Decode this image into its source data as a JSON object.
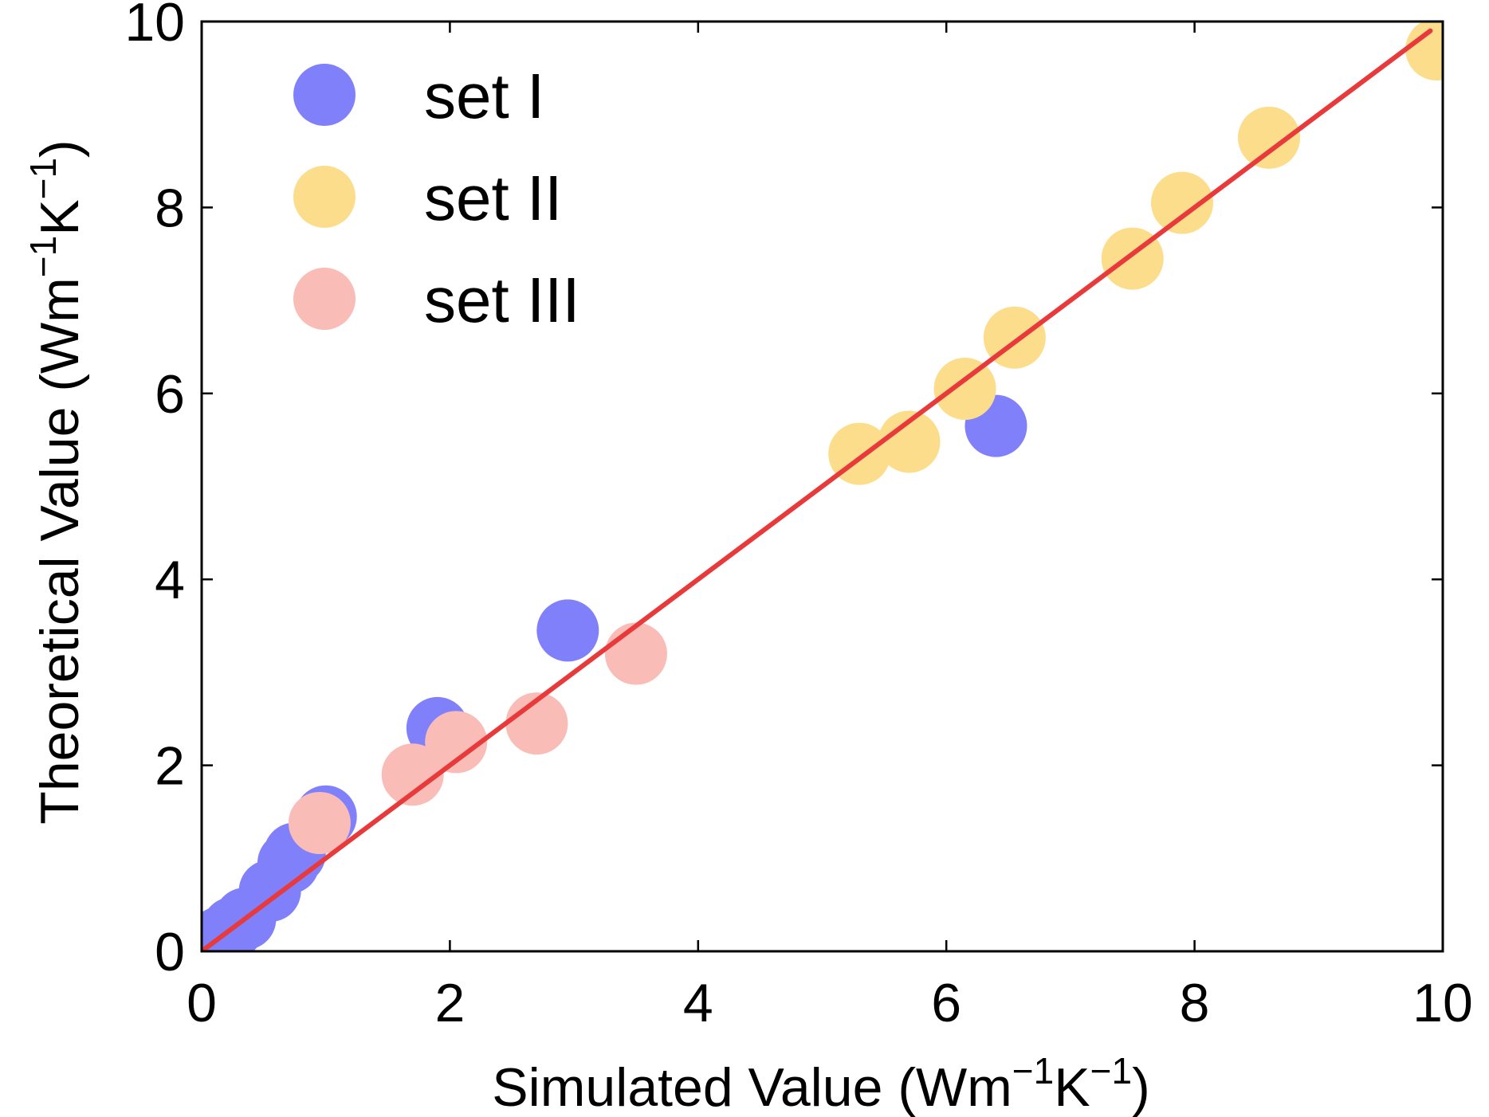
{
  "chart_data": {
    "type": "scatter",
    "title": "",
    "xlabel": {
      "main": "Simulated Value (Wm",
      "sup1": "−1",
      "mid": "K",
      "sup2": "−1",
      "end": ")"
    },
    "ylabel": {
      "main": "Theoretical Value (Wm",
      "sup1": "−1",
      "mid": "K",
      "sup2": "−1",
      "end": ")"
    },
    "xlim": [
      0,
      10
    ],
    "ylim": [
      0,
      10
    ],
    "xticks": [
      0,
      2,
      4,
      6,
      8,
      10
    ],
    "yticks": [
      0,
      2,
      4,
      6,
      8,
      10
    ],
    "xtick_labels": [
      "0",
      "2",
      "4",
      "6",
      "8",
      "10"
    ],
    "ytick_labels": [
      "0",
      "2",
      "4",
      "6",
      "8",
      "10"
    ],
    "legend_position": "top-left",
    "reference_line": {
      "name": "y = x",
      "from": [
        0,
        0
      ],
      "to": [
        9.9,
        9.9
      ],
      "color": "#e8393b"
    },
    "series": [
      {
        "name": "set I",
        "color": "#8080fa",
        "points": [
          [
            0.05,
            0.05
          ],
          [
            0.15,
            0.15
          ],
          [
            0.25,
            0.25
          ],
          [
            0.35,
            0.35
          ],
          [
            0.55,
            0.65
          ],
          [
            0.7,
            0.95
          ],
          [
            0.75,
            1.05
          ],
          [
            1.0,
            1.45
          ],
          [
            1.9,
            2.4
          ],
          [
            2.95,
            3.45
          ],
          [
            6.4,
            5.65
          ]
        ]
      },
      {
        "name": "set II",
        "color": "#fbdd8b",
        "points": [
          [
            5.3,
            5.35
          ],
          [
            5.7,
            5.48
          ],
          [
            6.15,
            6.05
          ],
          [
            6.55,
            6.6
          ],
          [
            7.5,
            7.45
          ],
          [
            7.9,
            8.05
          ],
          [
            8.6,
            8.75
          ],
          [
            9.95,
            9.7
          ]
        ]
      },
      {
        "name": "set III",
        "color": "#f9bcb6",
        "points": [
          [
            0.95,
            1.38
          ],
          [
            1.7,
            1.9
          ],
          [
            2.05,
            2.25
          ],
          [
            2.7,
            2.45
          ],
          [
            3.5,
            3.2
          ]
        ]
      }
    ]
  }
}
